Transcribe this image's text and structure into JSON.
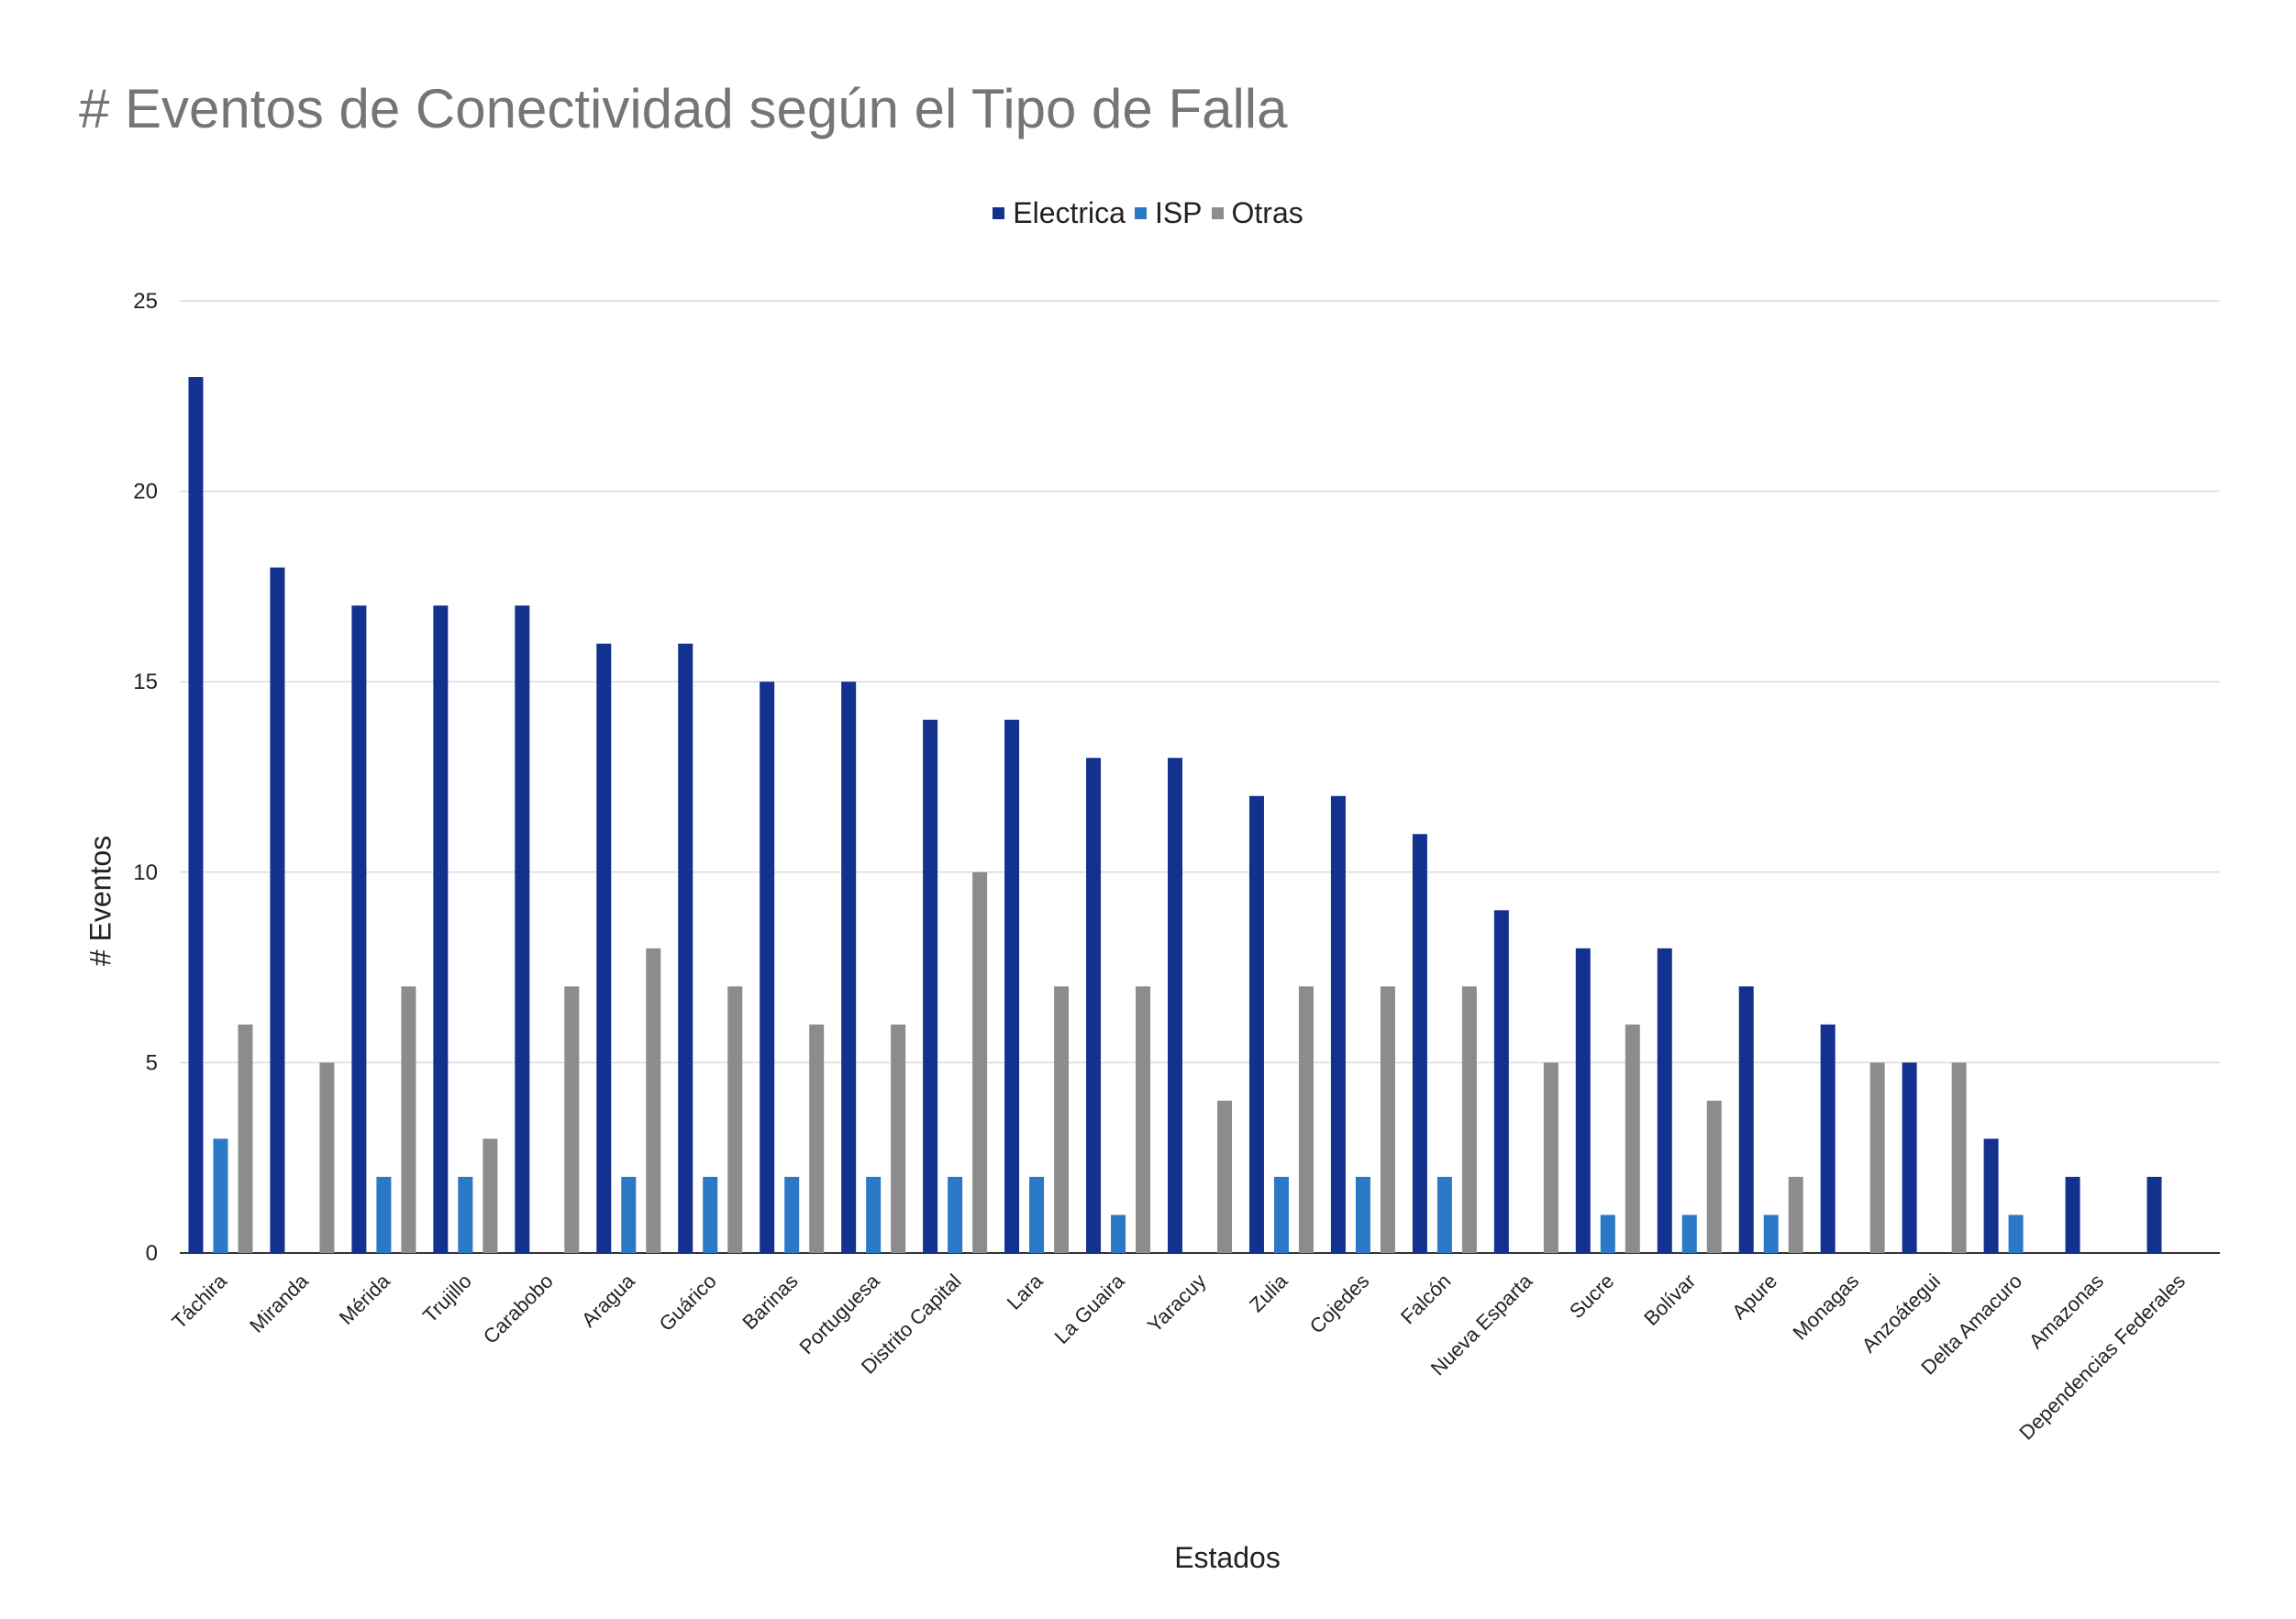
{
  "chart_data": {
    "type": "bar",
    "title": "# Eventos de Conectividad según el Tipo de Falla",
    "xlabel": "Estados",
    "ylabel": "# Eventos",
    "ylim": [
      0,
      25
    ],
    "yticks": [
      0,
      5,
      10,
      15,
      20,
      25
    ],
    "grid": true,
    "legend_position": "top-center",
    "categories": [
      "Táchira",
      "Miranda",
      "Mérida",
      "Trujillo",
      "Carabobo",
      "Aragua",
      "Guárico",
      "Barinas",
      "Portuguesa",
      "Distrito Capital",
      "Lara",
      "La Guaira",
      "Yaracuy",
      "Zulia",
      "Cojedes",
      "Falcón",
      "Nueva Esparta",
      "Sucre",
      "Bolívar",
      "Apure",
      "Monagas",
      "Anzoátegui",
      "Delta Amacuro",
      "Amazonas",
      "Dependencias Federales"
    ],
    "series": [
      {
        "name": "Electrica",
        "color": "#13318f",
        "values": [
          23,
          18,
          17,
          17,
          17,
          16,
          16,
          15,
          15,
          14,
          14,
          13,
          13,
          12,
          12,
          11,
          9,
          8,
          8,
          7,
          6,
          5,
          3,
          2,
          2
        ]
      },
      {
        "name": "ISP",
        "color": "#2a78c6",
        "values": [
          3,
          0,
          2,
          2,
          0,
          2,
          2,
          2,
          2,
          2,
          2,
          1,
          0,
          2,
          2,
          2,
          0,
          1,
          1,
          1,
          0,
          0,
          1,
          0,
          0
        ]
      },
      {
        "name": "Otras",
        "color": "#8c8c8e",
        "values": [
          6,
          5,
          7,
          3,
          7,
          8,
          7,
          6,
          6,
          10,
          7,
          7,
          4,
          7,
          7,
          7,
          5,
          6,
          4,
          2,
          5,
          5,
          0,
          0,
          0
        ]
      }
    ]
  }
}
